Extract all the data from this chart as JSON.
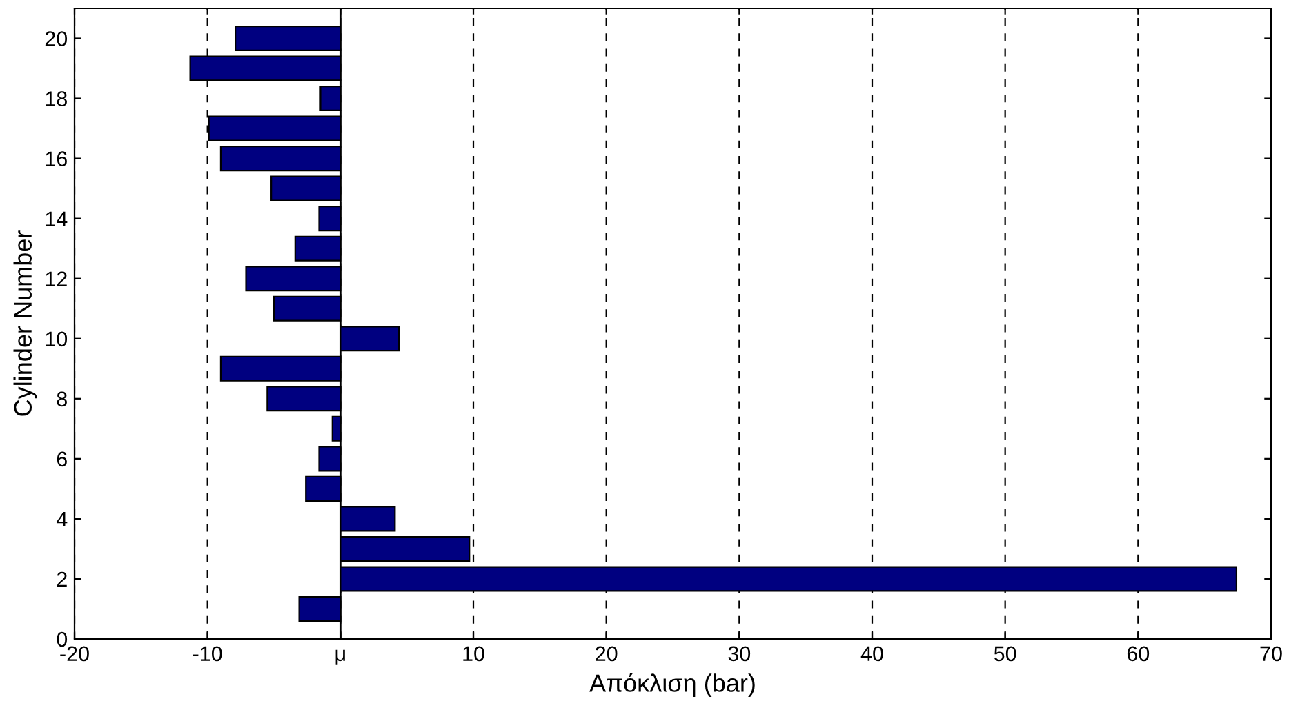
{
  "chart_data": {
    "type": "bar",
    "orientation": "horizontal",
    "xlabel": "Απόκλιση (bar)",
    "ylabel": "Cylinder Number",
    "x": [
      1,
      2,
      3,
      4,
      5,
      6,
      7,
      8,
      9,
      10,
      11,
      12,
      13,
      14,
      15,
      16,
      17,
      18,
      19,
      20
    ],
    "values": [
      -3.1,
      67.4,
      9.7,
      4.1,
      -2.6,
      -1.6,
      -0.6,
      -5.5,
      -9.0,
      4.4,
      -5.0,
      -7.1,
      -3.4,
      -1.6,
      -5.2,
      -9.0,
      -9.9,
      -1.5,
      -11.3,
      -7.9
    ],
    "color": "#000080",
    "xlim": [
      -20,
      70
    ],
    "xticks": [
      -20,
      -10,
      {
        "value": 0,
        "label": "μ"
      },
      10,
      20,
      30,
      40,
      50,
      60,
      70
    ],
    "ylim": [
      0,
      21
    ],
    "yticks": [
      0,
      2,
      4,
      6,
      8,
      10,
      12,
      14,
      16,
      18,
      20
    ],
    "grid": "x",
    "ref_lines": [
      {
        "axis": "x",
        "value": 0,
        "color": "#000000",
        "line_style": "solid"
      }
    ]
  }
}
